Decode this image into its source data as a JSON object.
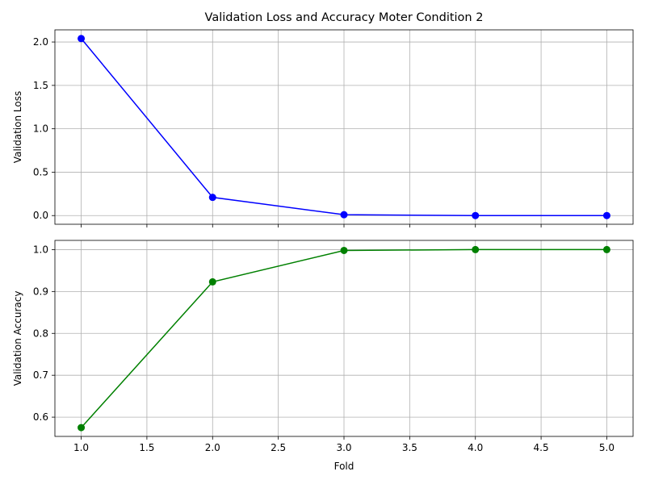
{
  "chart_data": [
    {
      "type": "line",
      "title": "Validation Loss and Accuracy Moter Condition 2",
      "xlabel": "",
      "ylabel": "Validation Loss",
      "x": [
        1,
        2,
        3,
        4,
        5
      ],
      "series": [
        {
          "values": [
            2.04,
            0.21,
            0.01,
            0.0,
            0.0
          ],
          "color": "#0000ff"
        }
      ],
      "xlim": [
        0.8,
        5.2
      ],
      "ylim": [
        -0.1,
        2.14
      ],
      "xticks": [
        1.0,
        1.5,
        2.0,
        2.5,
        3.0,
        3.5,
        4.0,
        4.5,
        5.0
      ],
      "xtick_labels_visible": false,
      "yticks": [
        0.0,
        0.5,
        1.0,
        1.5,
        2.0
      ],
      "ytick_labels": [
        "0.0",
        "0.5",
        "1.0",
        "1.5",
        "2.0"
      ],
      "grid": true
    },
    {
      "type": "line",
      "title": "",
      "xlabel": "Fold",
      "ylabel": "Validation Accuracy",
      "x": [
        1,
        2,
        3,
        4,
        5
      ],
      "series": [
        {
          "values": [
            0.575,
            0.923,
            0.998,
            1.0,
            1.0
          ],
          "color": "#008000"
        }
      ],
      "xlim": [
        0.8,
        5.2
      ],
      "ylim": [
        0.554,
        1.022
      ],
      "xticks": [
        1.0,
        1.5,
        2.0,
        2.5,
        3.0,
        3.5,
        4.0,
        4.5,
        5.0
      ],
      "xtick_labels": [
        "1.0",
        "1.5",
        "2.0",
        "2.5",
        "3.0",
        "3.5",
        "4.0",
        "4.5",
        "5.0"
      ],
      "xtick_labels_visible": true,
      "yticks": [
        0.6,
        0.7,
        0.8,
        0.9,
        1.0
      ],
      "ytick_labels": [
        "0.6",
        "0.7",
        "0.8",
        "0.9",
        "1.0"
      ],
      "grid": true
    }
  ]
}
